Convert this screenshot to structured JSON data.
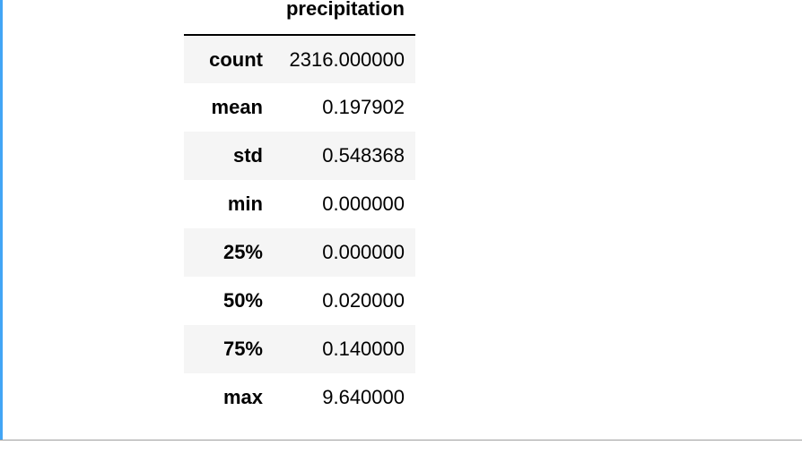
{
  "table": {
    "columns": [
      "precipitation"
    ],
    "rows": [
      {
        "label": "count",
        "value": "2316.000000"
      },
      {
        "label": "mean",
        "value": "0.197902"
      },
      {
        "label": "std",
        "value": "0.548368"
      },
      {
        "label": "min",
        "value": "0.000000"
      },
      {
        "label": "25%",
        "value": "0.000000"
      },
      {
        "label": "50%",
        "value": "0.020000"
      },
      {
        "label": "75%",
        "value": "0.140000"
      },
      {
        "label": "max",
        "value": "9.640000"
      }
    ]
  },
  "colors": {
    "cell_accent": "#42a5f5",
    "row_stripe": "#f5f5f5",
    "cell_border": "#9e9e9e"
  }
}
